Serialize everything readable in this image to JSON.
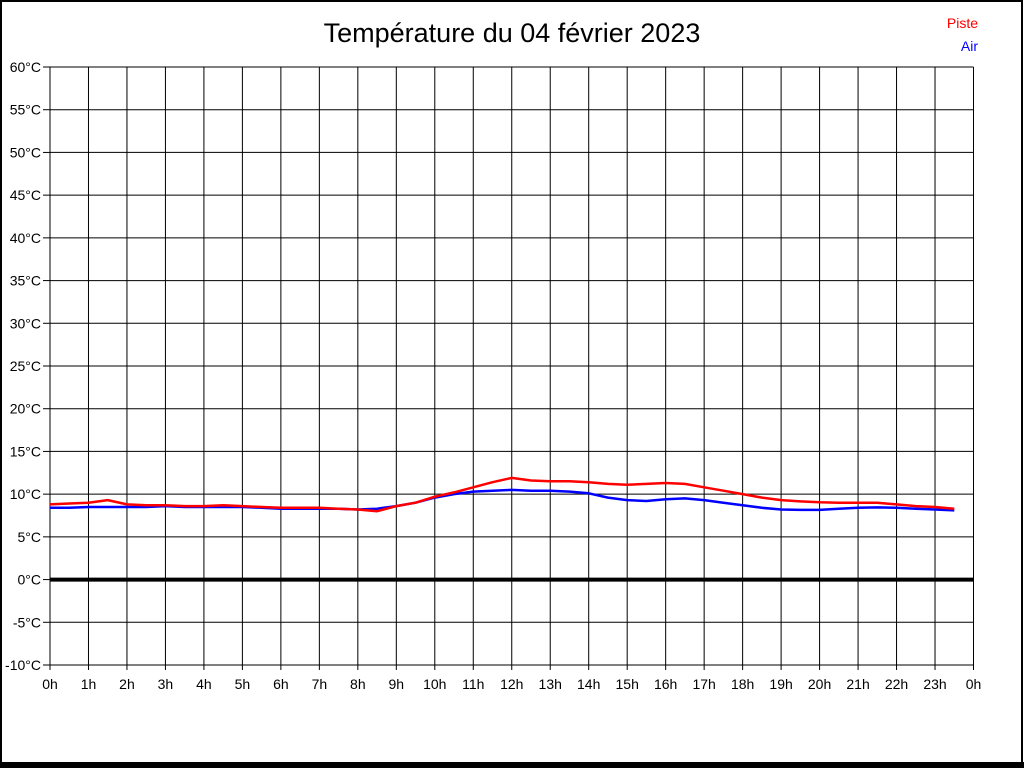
{
  "window": {
    "title": "Température du 04 février 2023"
  },
  "legend": {
    "position": "top-right",
    "items": [
      {
        "label": "Piste",
        "color": "#ff0000"
      },
      {
        "label": "Air",
        "color": "#0000ff"
      }
    ]
  },
  "axes": {
    "y_tick_labels": [
      "60°C",
      "55°C",
      "50°C",
      "45°C",
      "40°C",
      "35°C",
      "30°C",
      "25°C",
      "20°C",
      "15°C",
      "10°C",
      "5°C",
      "0°C",
      "-5°C",
      "-10°C"
    ],
    "x_tick_labels": [
      "0h",
      "1h",
      "2h",
      "3h",
      "4h",
      "5h",
      "6h",
      "7h",
      "8h",
      "9h",
      "10h",
      "11h",
      "12h",
      "13h",
      "14h",
      "15h",
      "16h",
      "17h",
      "18h",
      "19h",
      "20h",
      "21h",
      "22h",
      "23h",
      "0h"
    ]
  },
  "colors": {
    "background": "#ffffff",
    "border": "#000000",
    "grid": "#000000",
    "zero_line": "#000000",
    "text": "#000000"
  },
  "chart_data": {
    "type": "line",
    "title": "Température du 04 février 2023",
    "xlabel": "",
    "ylabel": "°C",
    "x_unit": "hours",
    "x_start": 0,
    "x_step": 0.5,
    "x_range_hours": [
      0,
      24
    ],
    "ylim": [
      -10,
      60
    ],
    "y_tick_step": 5,
    "grid": true,
    "zero_line_emphasized": true,
    "legend_position": "top-right",
    "series": [
      {
        "name": "Piste",
        "color": "#ff0000",
        "values": [
          8.8,
          8.9,
          9.0,
          9.3,
          8.8,
          8.7,
          8.7,
          8.6,
          8.6,
          8.7,
          8.6,
          8.5,
          8.4,
          8.4,
          8.4,
          8.3,
          8.2,
          8.0,
          8.6,
          9.0,
          9.7,
          10.2,
          10.8,
          11.4,
          11.9,
          11.6,
          11.5,
          11.5,
          11.4,
          11.2,
          11.1,
          11.2,
          11.3,
          11.2,
          10.8,
          10.4,
          10.0,
          9.6,
          9.3,
          9.15,
          9.05,
          9.0,
          9.0,
          9.0,
          8.8,
          8.6,
          8.5,
          8.3
        ]
      },
      {
        "name": "Air",
        "color": "#0000ff",
        "values": [
          8.4,
          8.4,
          8.5,
          8.5,
          8.5,
          8.5,
          8.6,
          8.5,
          8.5,
          8.5,
          8.5,
          8.4,
          8.3,
          8.3,
          8.3,
          8.3,
          8.2,
          8.3,
          8.6,
          9.0,
          9.6,
          10.0,
          10.3,
          10.4,
          10.5,
          10.4,
          10.4,
          10.3,
          10.1,
          9.6,
          9.3,
          9.2,
          9.4,
          9.5,
          9.3,
          9.0,
          8.7,
          8.4,
          8.2,
          8.15,
          8.15,
          8.3,
          8.4,
          8.45,
          8.4,
          8.3,
          8.2,
          8.1
        ]
      }
    ]
  }
}
